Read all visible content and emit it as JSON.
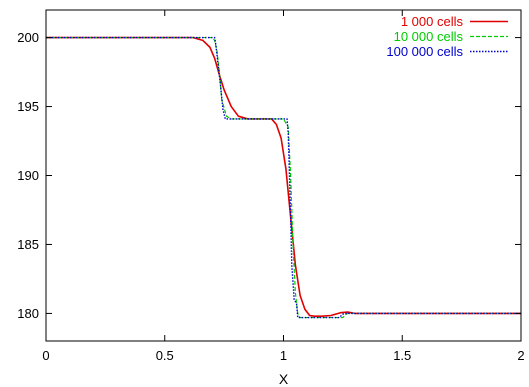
{
  "chart_data": {
    "type": "line",
    "title": "",
    "xlabel": "X",
    "ylabel": "",
    "xlim": [
      0,
      2
    ],
    "ylim": [
      178,
      202
    ],
    "x_ticks": [
      0,
      0.5,
      1,
      1.5,
      2
    ],
    "x_tick_labels": [
      "0",
      "0.5",
      "1",
      "1.5",
      "2"
    ],
    "y_ticks": [
      180,
      185,
      190,
      195,
      200
    ],
    "y_tick_labels": [
      "180",
      "185",
      "190",
      "195",
      "200"
    ],
    "grid": false,
    "legend_position": "top-right",
    "series": [
      {
        "name": "1 000 cells",
        "color": "#e00000",
        "dash": "solid",
        "x": [
          0,
          0.62,
          0.66,
          0.69,
          0.71,
          0.73,
          0.75,
          0.78,
          0.81,
          0.85,
          0.9,
          0.95,
          0.97,
          0.99,
          1.01,
          1.03,
          1.05,
          1.07,
          1.09,
          1.11,
          1.13,
          1.16,
          1.2,
          1.24,
          1.27,
          1.3,
          1.4,
          2.0
        ],
        "y": [
          200.0,
          200.0,
          199.8,
          199.3,
          198.5,
          197.3,
          196.2,
          195.0,
          194.3,
          194.1,
          194.1,
          194.1,
          193.7,
          192.7,
          190.5,
          187.0,
          183.5,
          181.3,
          180.3,
          179.85,
          179.8,
          179.8,
          179.85,
          180.05,
          180.1,
          180.0,
          180.0,
          180.0
        ]
      },
      {
        "name": "10 000 cells",
        "color": "#00cc00",
        "dash": "dash",
        "x": [
          0,
          0.7,
          0.71,
          0.72,
          0.73,
          0.74,
          0.76,
          0.78,
          0.98,
          1.0,
          1.02,
          1.03,
          1.04,
          1.05,
          1.06,
          1.07,
          1.08,
          1.25,
          1.26,
          1.27,
          2.0
        ],
        "y": [
          200.0,
          200.0,
          199.8,
          199.0,
          197.5,
          195.5,
          194.3,
          194.1,
          194.1,
          194.1,
          193.5,
          190.0,
          185.0,
          181.5,
          180.0,
          179.7,
          179.7,
          179.7,
          179.9,
          180.0,
          180.0
        ]
      },
      {
        "name": "100 000 cells",
        "color": "#0000cc",
        "dash": "dot",
        "x": [
          0,
          0.71,
          0.715,
          0.725,
          0.735,
          0.745,
          0.755,
          0.765,
          1.015,
          1.02,
          1.025,
          1.03,
          1.035,
          1.045,
          1.055,
          1.06,
          1.065,
          1.235,
          1.25,
          1.26,
          2.0
        ],
        "y": [
          200.0,
          200.0,
          199.5,
          198.0,
          196.5,
          194.8,
          194.1,
          194.1,
          194.1,
          193.0,
          190.0,
          187.0,
          183.5,
          181.0,
          180.7,
          179.7,
          179.7,
          179.7,
          179.95,
          180.0,
          180.0
        ]
      }
    ]
  }
}
